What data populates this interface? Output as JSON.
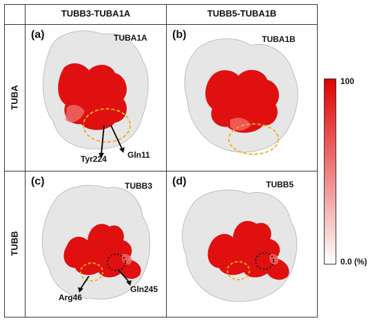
{
  "columns": [
    "TUBB3-TUBA1A",
    "TUBB5-TUBA1B"
  ],
  "rows": [
    "TUBA",
    "TUBB"
  ],
  "panels": [
    {
      "letter": "(a)",
      "name": "TUBA1A",
      "annotations": [
        "Tyr224",
        "Gln11"
      ]
    },
    {
      "letter": "(b)",
      "name": "TUBA1B",
      "annotations": []
    },
    {
      "letter": "(c)",
      "name": "TUBB3",
      "annotations": [
        "Arg46",
        "Gln245"
      ]
    },
    {
      "letter": "(d)",
      "name": "TUBB5",
      "annotations": []
    }
  ],
  "colorbar": {
    "max_label": "100",
    "min_label": "0.0 (%)",
    "color_high": "#e00000",
    "color_low": "#ffffff"
  },
  "colors": {
    "surface": "#e6e6e6",
    "highlight": "#e01010",
    "circle_yellow": "#f0b020",
    "circle_black": "#111111"
  }
}
